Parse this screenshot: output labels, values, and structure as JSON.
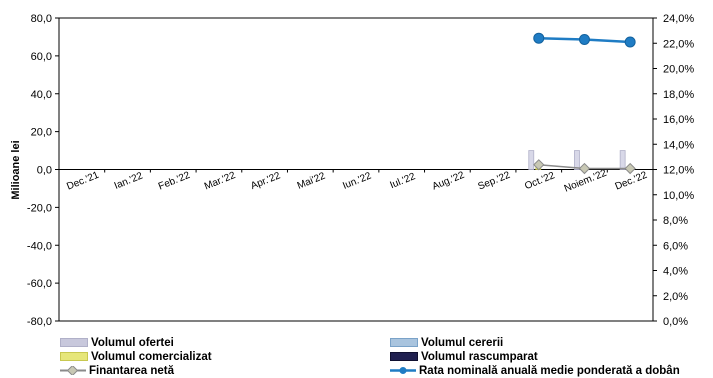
{
  "chart_data": {
    "type": "bar",
    "title": "",
    "ylabel": "Milioane lei",
    "categories": [
      "Dec.'21",
      "Ian.'22",
      "Feb.'22",
      "Mar.'22",
      "Apr.'22",
      "Mai'22",
      "Iun.'22",
      "Iul.'22",
      "Aug.'22",
      "Sep.'22",
      "Oct.'22",
      "Noiem.'22",
      "Dec.'22"
    ],
    "y_left": {
      "min": -80,
      "max": 80,
      "step": 20,
      "ticks": [
        "-80,0",
        "-60,0",
        "-40,0",
        "-20,0",
        "0,0",
        "20,0",
        "40,0",
        "60,0",
        "80,0"
      ]
    },
    "y_right": {
      "min": 0,
      "max": 24,
      "step": 2,
      "ticks": [
        "0,0%",
        "2,0%",
        "4,0%",
        "6,0%",
        "8,0%",
        "10,0%",
        "12,0%",
        "14,0%",
        "16,0%",
        "18,0%",
        "20,0%",
        "22,0%",
        "24,0%"
      ]
    },
    "series": [
      {
        "name": "Volumul ofertei",
        "kind": "bar",
        "axis": "left",
        "color": "#c8c8dc",
        "values": [
          null,
          null,
          null,
          null,
          null,
          null,
          null,
          null,
          null,
          null,
          10.0,
          10.0,
          10.0
        ]
      },
      {
        "name": "Volumul cererii",
        "kind": "bar",
        "axis": "left",
        "color": "#a9c4de",
        "values": [
          null,
          null,
          null,
          null,
          null,
          null,
          null,
          null,
          null,
          null,
          null,
          null,
          null
        ]
      },
      {
        "name": "Volumul comercializat",
        "kind": "bar",
        "axis": "left",
        "color": "#e6e67a",
        "values": [
          null,
          null,
          null,
          null,
          null,
          null,
          null,
          null,
          null,
          null,
          1.0,
          0.5,
          0.5
        ]
      },
      {
        "name": "Volumul rascumparat",
        "kind": "bar",
        "axis": "left",
        "color": "#202050",
        "values": [
          null,
          null,
          null,
          null,
          null,
          null,
          null,
          null,
          null,
          null,
          null,
          null,
          null
        ]
      },
      {
        "name": "Finantarea netă",
        "kind": "line",
        "axis": "left",
        "color": "#8a8a8a",
        "values": [
          null,
          null,
          null,
          null,
          null,
          null,
          null,
          null,
          null,
          null,
          2.5,
          0.5,
          0.5
        ]
      },
      {
        "name": "Rata nominală anuală medie ponderată a dobânzii",
        "kind": "line",
        "axis": "right",
        "color": "#1f7cc4",
        "values": [
          null,
          null,
          null,
          null,
          null,
          null,
          null,
          null,
          null,
          null,
          22.4,
          22.3,
          22.1
        ]
      }
    ],
    "legend_position": "bottom",
    "grid": false
  }
}
